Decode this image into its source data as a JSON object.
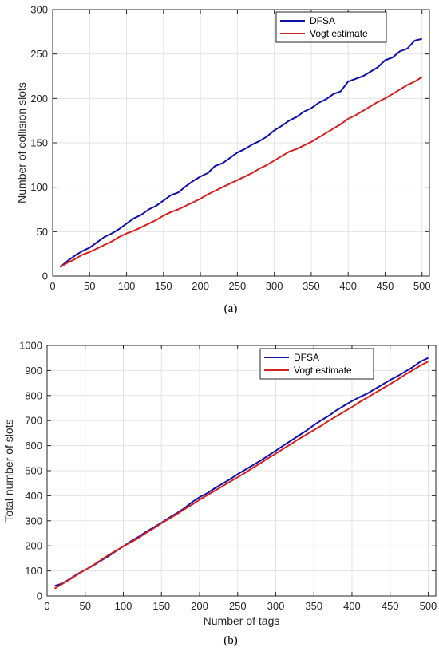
{
  "chart_data": [
    {
      "type": "line",
      "caption": "(a)",
      "xlabel": "",
      "ylabel": "Number of collision slots",
      "xlim": [
        0,
        510
      ],
      "ylim": [
        0,
        300
      ],
      "xticks": [
        0,
        50,
        100,
        150,
        200,
        250,
        300,
        350,
        400,
        450,
        500
      ],
      "yticks": [
        0,
        50,
        100,
        150,
        200,
        250,
        300
      ],
      "grid": true,
      "legend_position": "top-right",
      "series": [
        {
          "name": "DFSA",
          "color": "#1010a8",
          "x": [
            10,
            20,
            30,
            40,
            50,
            60,
            70,
            80,
            90,
            100,
            110,
            120,
            130,
            140,
            150,
            160,
            170,
            180,
            190,
            200,
            210,
            220,
            230,
            240,
            250,
            260,
            270,
            280,
            290,
            300,
            310,
            320,
            330,
            340,
            350,
            360,
            370,
            380,
            390,
            400,
            410,
            420,
            430,
            440,
            450,
            460,
            470,
            480,
            490,
            500
          ],
          "values": [
            10,
            17,
            23,
            28,
            32,
            38,
            44,
            48,
            53,
            59,
            65,
            69,
            75,
            79,
            85,
            91,
            94,
            101,
            107,
            112,
            116,
            124,
            127,
            133,
            139,
            143,
            148,
            152,
            157,
            164,
            169,
            175,
            179,
            185,
            189,
            195,
            199,
            205,
            208,
            219,
            222,
            225,
            230,
            235,
            243,
            246,
            253,
            256,
            265,
            267
          ]
        },
        {
          "name": "Vogt estimate",
          "color": "#d42020",
          "x": [
            10,
            20,
            30,
            40,
            50,
            60,
            70,
            80,
            90,
            100,
            110,
            120,
            130,
            140,
            150,
            160,
            170,
            180,
            190,
            200,
            210,
            220,
            230,
            240,
            250,
            260,
            270,
            280,
            290,
            300,
            310,
            320,
            330,
            340,
            350,
            360,
            370,
            380,
            390,
            400,
            410,
            420,
            430,
            440,
            450,
            460,
            470,
            480,
            490,
            500
          ],
          "values": [
            10,
            15,
            19,
            24,
            27,
            31,
            35,
            39,
            44,
            48,
            51,
            55,
            59,
            63,
            68,
            72,
            75,
            79,
            83,
            87,
            92,
            96,
            100,
            104,
            108,
            112,
            116,
            121,
            125,
            130,
            135,
            140,
            143,
            147,
            151,
            156,
            161,
            166,
            171,
            177,
            181,
            186,
            191,
            196,
            200,
            205,
            210,
            215,
            219,
            224
          ]
        }
      ]
    },
    {
      "type": "line",
      "caption": "(b)",
      "xlabel": "Number of tags",
      "ylabel": "Total number of slots",
      "xlim": [
        0,
        510
      ],
      "ylim": [
        0,
        1000
      ],
      "xticks": [
        0,
        50,
        100,
        150,
        200,
        250,
        300,
        350,
        400,
        450,
        500
      ],
      "yticks": [
        0,
        100,
        200,
        300,
        400,
        500,
        600,
        700,
        800,
        900,
        1000
      ],
      "grid": true,
      "legend_position": "top-right",
      "series": [
        {
          "name": "DFSA",
          "color": "#1010a8",
          "x": [
            10,
            20,
            30,
            40,
            50,
            60,
            70,
            80,
            90,
            100,
            110,
            120,
            130,
            140,
            150,
            160,
            170,
            180,
            190,
            200,
            210,
            220,
            230,
            240,
            250,
            260,
            270,
            280,
            290,
            300,
            310,
            320,
            330,
            340,
            350,
            360,
            370,
            380,
            390,
            400,
            410,
            420,
            430,
            440,
            450,
            460,
            470,
            480,
            490,
            500
          ],
          "values": [
            40,
            50,
            68,
            88,
            104,
            120,
            140,
            158,
            178,
            198,
            218,
            236,
            256,
            274,
            292,
            312,
            330,
            350,
            374,
            394,
            410,
            430,
            448,
            466,
            486,
            504,
            522,
            540,
            560,
            580,
            600,
            620,
            640,
            660,
            682,
            702,
            720,
            742,
            760,
            778,
            794,
            808,
            826,
            844,
            862,
            878,
            896,
            914,
            936,
            950
          ]
        },
        {
          "name": "Vogt estimate",
          "color": "#d42020",
          "x": [
            10,
            20,
            30,
            40,
            50,
            60,
            70,
            80,
            90,
            100,
            110,
            120,
            130,
            140,
            150,
            160,
            170,
            180,
            190,
            200,
            210,
            220,
            230,
            240,
            250,
            260,
            270,
            280,
            290,
            300,
            310,
            320,
            330,
            340,
            350,
            360,
            370,
            380,
            390,
            400,
            410,
            420,
            430,
            440,
            450,
            460,
            470,
            480,
            490,
            500
          ],
          "values": [
            30,
            48,
            66,
            86,
            104,
            122,
            142,
            162,
            180,
            198,
            214,
            232,
            252,
            270,
            290,
            308,
            326,
            346,
            364,
            384,
            402,
            420,
            438,
            456,
            474,
            492,
            512,
            530,
            550,
            568,
            588,
            606,
            626,
            644,
            662,
            680,
            700,
            718,
            736,
            754,
            774,
            792,
            810,
            828,
            846,
            864,
            884,
            902,
            920,
            936
          ]
        }
      ]
    }
  ]
}
